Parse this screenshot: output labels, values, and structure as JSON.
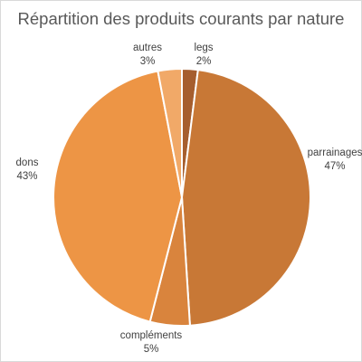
{
  "chart_data": {
    "type": "pie",
    "title": "Répartition des produits courants par nature",
    "slices": [
      {
        "label": "legs",
        "value": 2,
        "value_label": "2%",
        "color": "#a65e2e"
      },
      {
        "label": "parrainages",
        "value": 47,
        "value_label": "47%",
        "color": "#c87836"
      },
      {
        "label": "compléments",
        "value": 5,
        "value_label": "5%",
        "color": "#d9843d"
      },
      {
        "label": "dons",
        "value": 43,
        "value_label": "43%",
        "color": "#ed9545"
      },
      {
        "label": "autres",
        "value": 3,
        "value_label": "3%",
        "color": "#f1a968"
      }
    ],
    "start": "12 o'clock",
    "direction": "clockwise",
    "legend": "none",
    "label_placement": "outside"
  }
}
